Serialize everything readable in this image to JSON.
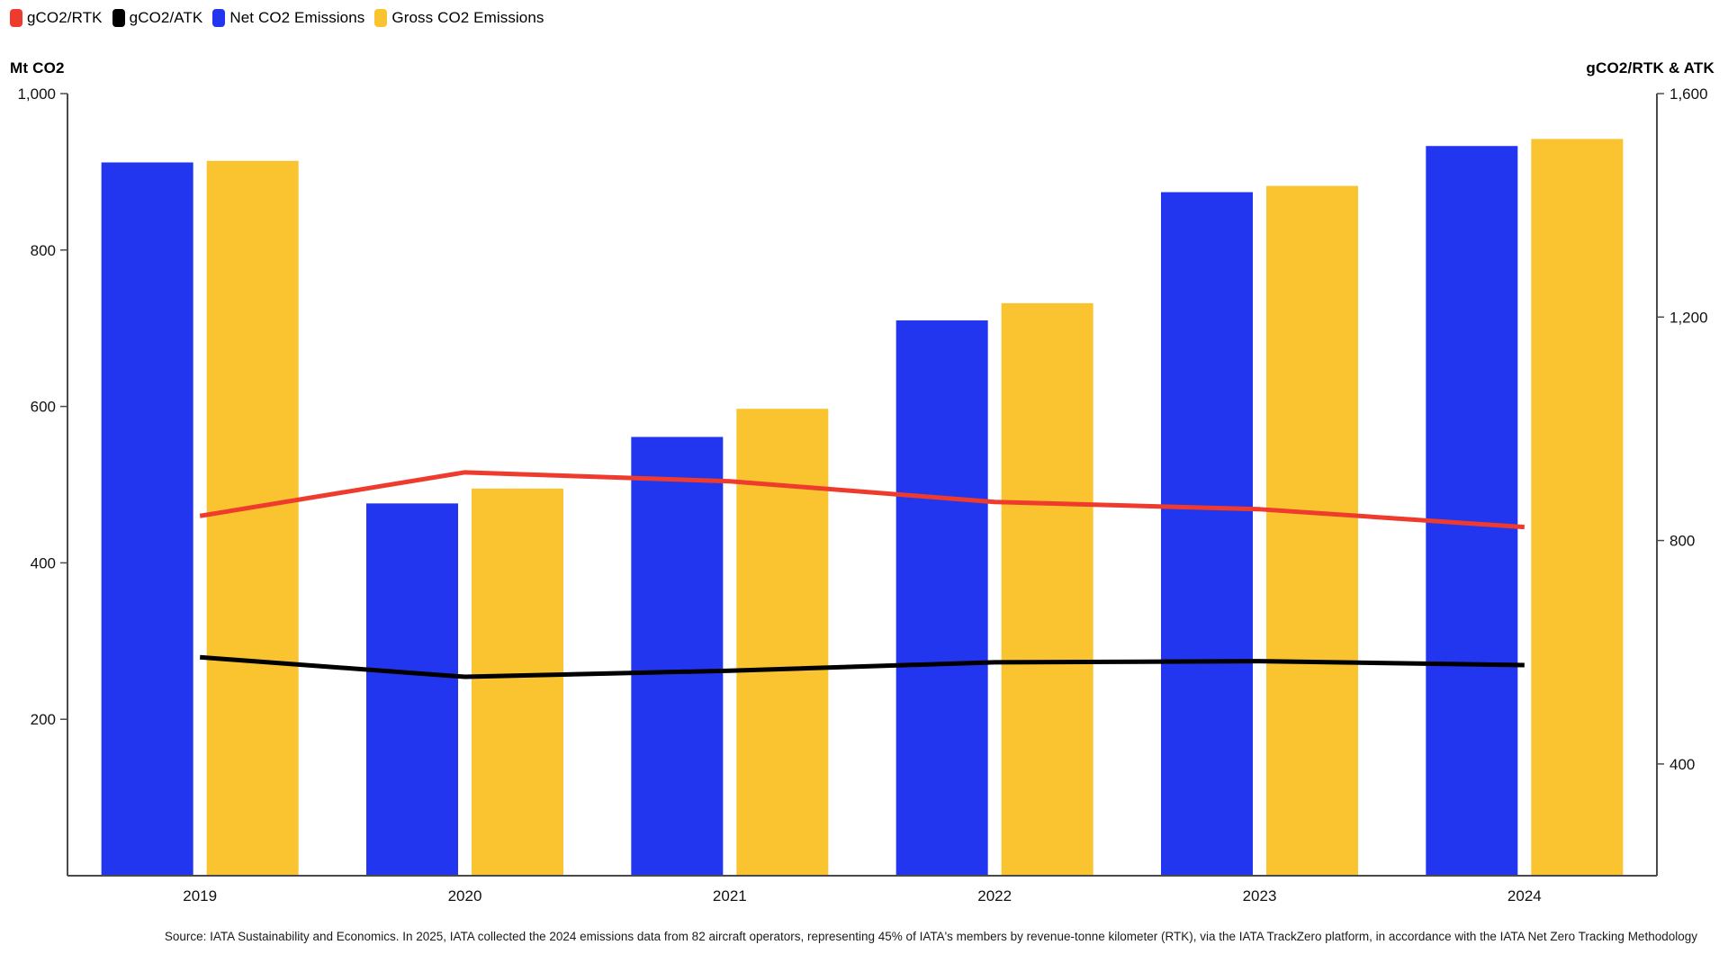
{
  "legend": {
    "items": [
      {
        "label": "gCO2/RTK",
        "color": "#EF3B2D"
      },
      {
        "label": "gCO2/ATK",
        "color": "#000000"
      },
      {
        "label": "Net CO2 Emissions",
        "color": "#2236F0"
      },
      {
        "label": "Gross CO2 Emissions",
        "color": "#F9C430"
      }
    ]
  },
  "axis_titles": {
    "left": "Mt CO2",
    "right": "gCO2/RTK & ATK"
  },
  "chart_data": {
    "type": "combo-bar-line",
    "title": "",
    "categories": [
      "2019",
      "2020",
      "2021",
      "2022",
      "2023",
      "2024"
    ],
    "series": [
      {
        "name": "Net CO2 Emissions",
        "type": "bar",
        "axis": "left",
        "color": "#2236F0",
        "values": [
          912,
          476,
          561,
          710,
          874,
          933
        ]
      },
      {
        "name": "Gross CO2 Emissions",
        "type": "bar",
        "axis": "left",
        "color": "#F9C430",
        "values": [
          914,
          495,
          597,
          732,
          882,
          942
        ]
      },
      {
        "name": "gCO2/RTK",
        "type": "line",
        "axis": "right",
        "color": "#EF3B2D",
        "values": [
          844,
          922,
          906,
          869,
          856,
          824
        ]
      },
      {
        "name": "gCO2/ATK",
        "type": "line",
        "axis": "right",
        "color": "#000000",
        "values": [
          591,
          556,
          567,
          582,
          584,
          577
        ]
      }
    ],
    "left_axis": {
      "title": "Mt CO2",
      "unit": "Mt CO2",
      "min": 0,
      "max": 1000,
      "ticks": [
        1000,
        800,
        600,
        400,
        200
      ],
      "tick_labels": [
        "1,000",
        "800",
        "600",
        "400",
        "200"
      ]
    },
    "right_axis": {
      "title": "gCO2/RTK & ATK",
      "unit": "g/RTK-ATK",
      "min": 200,
      "max": 1600,
      "ticks": [
        1600,
        1200,
        800,
        400
      ],
      "tick_labels": [
        "1,600",
        "1,200",
        "800",
        "400"
      ]
    },
    "grid": false,
    "legend_position": "top-left"
  },
  "source_note": "Source: IATA Sustainability and Economics. In 2025, IATA collected the 2024 emissions data from 82 aircraft operators, representing 45% of IATA's members by revenue-tonne kilometer (RTK), via the IATA TrackZero platform, in accordance with the IATA Net Zero Tracking Methodology"
}
